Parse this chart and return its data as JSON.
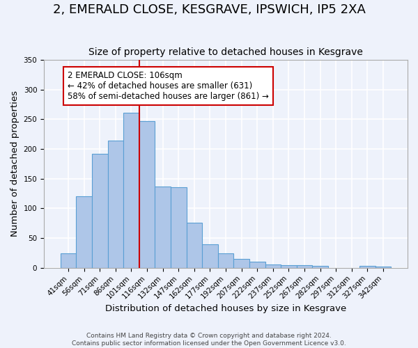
{
  "title": "2, EMERALD CLOSE, KESGRAVE, IPSWICH, IP5 2XA",
  "subtitle": "Size of property relative to detached houses in Kesgrave",
  "xlabel": "Distribution of detached houses by size in Kesgrave",
  "ylabel": "Number of detached properties",
  "categories": [
    "41sqm",
    "56sqm",
    "71sqm",
    "86sqm",
    "101sqm",
    "116sqm",
    "132sqm",
    "147sqm",
    "162sqm",
    "177sqm",
    "192sqm",
    "207sqm",
    "222sqm",
    "237sqm",
    "252sqm",
    "267sqm",
    "282sqm",
    "297sqm",
    "312sqm",
    "327sqm",
    "342sqm"
  ],
  "values": [
    25,
    120,
    192,
    214,
    261,
    247,
    137,
    136,
    76,
    40,
    25,
    15,
    10,
    6,
    5,
    4,
    3,
    0,
    0,
    3,
    2
  ],
  "bar_color": "#aec6e8",
  "bar_edge_color": "#5a9fd4",
  "vline_x": 4.5,
  "vline_color": "#cc0000",
  "ylim": [
    0,
    350
  ],
  "yticks": [
    0,
    50,
    100,
    150,
    200,
    250,
    300,
    350
  ],
  "annotation_text": "2 EMERALD CLOSE: 106sqm\n← 42% of detached houses are smaller (631)\n58% of semi-detached houses are larger (861) →",
  "annotation_box_color": "#ffffff",
  "annotation_box_edge_color": "#cc0000",
  "footer_line1": "Contains HM Land Registry data © Crown copyright and database right 2024.",
  "footer_line2": "Contains public sector information licensed under the Open Government Licence v3.0.",
  "background_color": "#eef2fb",
  "grid_color": "#ffffff",
  "title_fontsize": 13,
  "subtitle_fontsize": 10,
  "axis_label_fontsize": 9.5,
  "tick_fontsize": 7.5,
  "annotation_fontsize": 8.5,
  "footer_fontsize": 6.5
}
